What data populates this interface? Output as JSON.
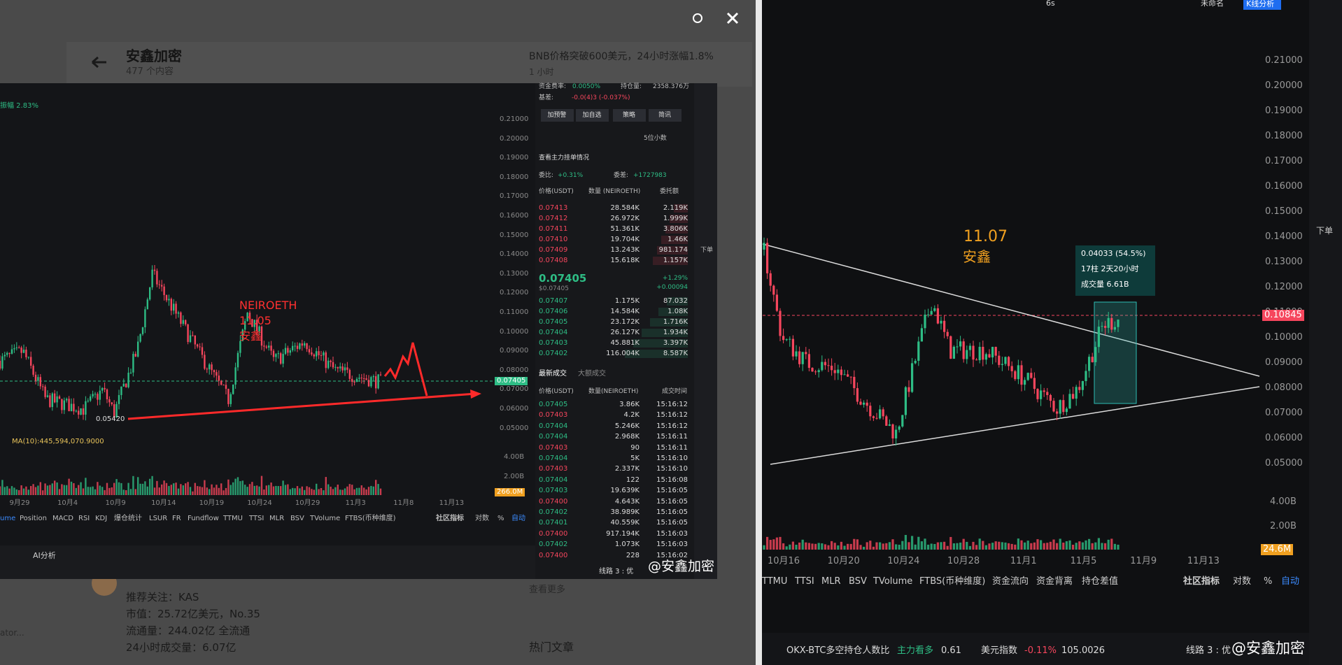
{
  "background_page": {
    "title": "安鑫加密",
    "subtitle": "477 个内容",
    "news": "BNB价格突破600美元，24小时涨幅1.8%",
    "news_time": "1 小时",
    "info": [
      "推荐关注：KAS",
      "市值：25.72亿美元，No.35",
      "流通量：244.02亿 全流通",
      "24小时成交量：6.07亿"
    ],
    "more": "查看更多",
    "hot": "热门文章",
    "side": "ator..."
  },
  "left_screenshot": {
    "amplitude": "振幅 2.83%",
    "price_axis": [
      "0.21000",
      "0.20000",
      "0.19000",
      "0.18000",
      "0.17000",
      "0.16000",
      "0.15000",
      "0.14000",
      "0.13000",
      "0.12000",
      "0.11000",
      "0.10000",
      "0.09000",
      "0.08000",
      "0.07000",
      "0.06000",
      "0.05000"
    ],
    "annotation": [
      "NEIROETH",
      "11.05",
      "安鑫"
    ],
    "low": "0.05420",
    "current": "0.07405",
    "ma": "MA(10):445,594,070.9000",
    "volume_axis": [
      "4.00B",
      "2.00B"
    ],
    "volume_current": "266.0M",
    "dates": [
      "9月29",
      "10月4",
      "10月9",
      "10月14",
      "10月19",
      "10月24",
      "10月29",
      "11月3",
      "11月8",
      "11月13"
    ],
    "tabs": [
      "ume",
      "Position",
      "MACD",
      "RSI",
      "KDJ",
      "爆仓统计",
      "LSUR",
      "FR",
      "Fundflow",
      "TTMU",
      "TTSI",
      "MLR",
      "BSV",
      "TVolume",
      "FTBS(币种维度)"
    ],
    "tabs_right": [
      "社区指标",
      "对数",
      "%",
      "自动"
    ],
    "bottom": "AI分析",
    "side_label": "下单",
    "order_book": {
      "funding_label": "资金费率:",
      "funding": "0.0050%",
      "oi_label": "持仓量:",
      "oi": "2358.376万",
      "basis_label": "基差:",
      "basis": "-0.0(4)3 (-0.037%)",
      "buttons": [
        "加预警",
        "加自选",
        "策略",
        "简讯"
      ],
      "decimals": "5位小数",
      "main_orders": "查看主力挂单情况",
      "ratio_label": "委比:",
      "ratio": "+0.31%",
      "diff_label": "委差:",
      "diff": "+1727983",
      "header": [
        "价格(USDT)",
        "数量 (NEIROETH)",
        "委托额"
      ],
      "asks": [
        [
          "0.07413",
          "28.584K",
          "2.119K"
        ],
        [
          "0.07412",
          "26.972K",
          "1.999K"
        ],
        [
          "0.07411",
          "51.361K",
          "3.806K"
        ],
        [
          "0.07410",
          "19.704K",
          "1.46K"
        ],
        [
          "0.07409",
          "13.243K",
          "981.174"
        ],
        [
          "0.07408",
          "15.618K",
          "1.157K"
        ]
      ],
      "last": "0.07405",
      "last_usd": "$0.07405",
      "change": "+1.29%",
      "change_abs": "+0.00094",
      "bids": [
        [
          "0.07407",
          "1.175K",
          "87.032"
        ],
        [
          "0.07406",
          "14.584K",
          "1.08K"
        ],
        [
          "0.07405",
          "23.172K",
          "1.716K"
        ],
        [
          "0.07404",
          "26.127K",
          "1.934K"
        ],
        [
          "0.07403",
          "45.881K",
          "3.397K"
        ],
        [
          "0.07402",
          "116.004K",
          "8.587K"
        ]
      ],
      "trade_tabs": [
        "最新成交",
        "大额成交"
      ],
      "trade_header": [
        "价格(USDT)",
        "数量(NEIROETH)",
        "成交时间"
      ],
      "trades": [
        {
          "price": "0.07405",
          "qty": "3.86K",
          "time": "15:16:12",
          "color": "#2ebd85"
        },
        {
          "price": "0.07403",
          "qty": "4.2K",
          "time": "15:16:12",
          "color": "#f6465d"
        },
        {
          "price": "0.07404",
          "qty": "5.246K",
          "time": "15:16:12",
          "color": "#2ebd85"
        },
        {
          "price": "0.07404",
          "qty": "2.968K",
          "time": "15:16:11",
          "color": "#2ebd85"
        },
        {
          "price": "0.07403",
          "qty": "90",
          "time": "15:16:11",
          "color": "#f6465d"
        },
        {
          "price": "0.07404",
          "qty": "5K",
          "time": "15:16:10",
          "color": "#2ebd85"
        },
        {
          "price": "0.07403",
          "qty": "2.337K",
          "time": "15:16:10",
          "color": "#f6465d"
        },
        {
          "price": "0.07404",
          "qty": "122",
          "time": "15:16:08",
          "color": "#2ebd85"
        },
        {
          "price": "0.07403",
          "qty": "19.639K",
          "time": "15:16:05",
          "color": "#2ebd85"
        },
        {
          "price": "0.07400",
          "qty": "4.643K",
          "time": "15:16:05",
          "color": "#f6465d"
        },
        {
          "price": "0.07402",
          "qty": "38.989K",
          "time": "15:16:05",
          "color": "#2ebd85"
        },
        {
          "price": "0.07401",
          "qty": "40.559K",
          "time": "15:16:05",
          "color": "#2ebd85"
        },
        {
          "price": "0.07400",
          "qty": "917.194K",
          "time": "15:16:03",
          "color": "#f6465d"
        },
        {
          "price": "0.07402",
          "qty": "1.073K",
          "time": "15:16:03",
          "color": "#2ebd85"
        },
        {
          "price": "0.07400",
          "qty": "228",
          "time": "15:16:02",
          "color": "#f6465d"
        }
      ]
    },
    "footer": "线路 3 : 优",
    "watermark": "@安鑫加密"
  },
  "right_chart": {
    "toolbar": [
      "6s",
      "未命名",
      "K线分析"
    ],
    "price_axis": [
      "0.21000",
      "0.20000",
      "0.19000",
      "0.18000",
      "0.17000",
      "0.16000",
      "0.15000",
      "0.14000",
      "0.13000",
      "0.12000",
      "0.11000",
      "0.10000",
      "0.09000",
      "0.08000",
      "0.07000",
      "0.06000",
      "0.05000"
    ],
    "current": "0.10845",
    "annotation": [
      "11.07",
      "安鑫"
    ],
    "info_box": [
      "0.04033 (54.5%)",
      "17柱 2天20小时",
      "成交量 6.61B"
    ],
    "volume_axis": [
      "4.00B",
      "2.00B"
    ],
    "volume_current": "24.6M",
    "dates": [
      "10月16",
      "10月20",
      "10月24",
      "10月28",
      "11月1",
      "11月5",
      "11月9",
      "11月13"
    ],
    "tabs": [
      "TTMU",
      "TTSI",
      "MLR",
      "BSV",
      "TVolume",
      "FTBS(币种维度)",
      "资金流向",
      "资金背离",
      "持仓差值"
    ],
    "tabs_right": [
      "社区指标",
      "对数",
      "%",
      "自动"
    ],
    "side_label": "下单",
    "status": {
      "ratio_label": "OKX-BTC多空持仓人数比",
      "ratio_tag": "主力看多",
      "ratio": "0.61",
      "dxy_label": "美元指数",
      "dxy_change": "-0.11%",
      "dxy": "105.0026",
      "line": "线路 3 : 优",
      "watermark": "@安鑫加密"
    }
  }
}
